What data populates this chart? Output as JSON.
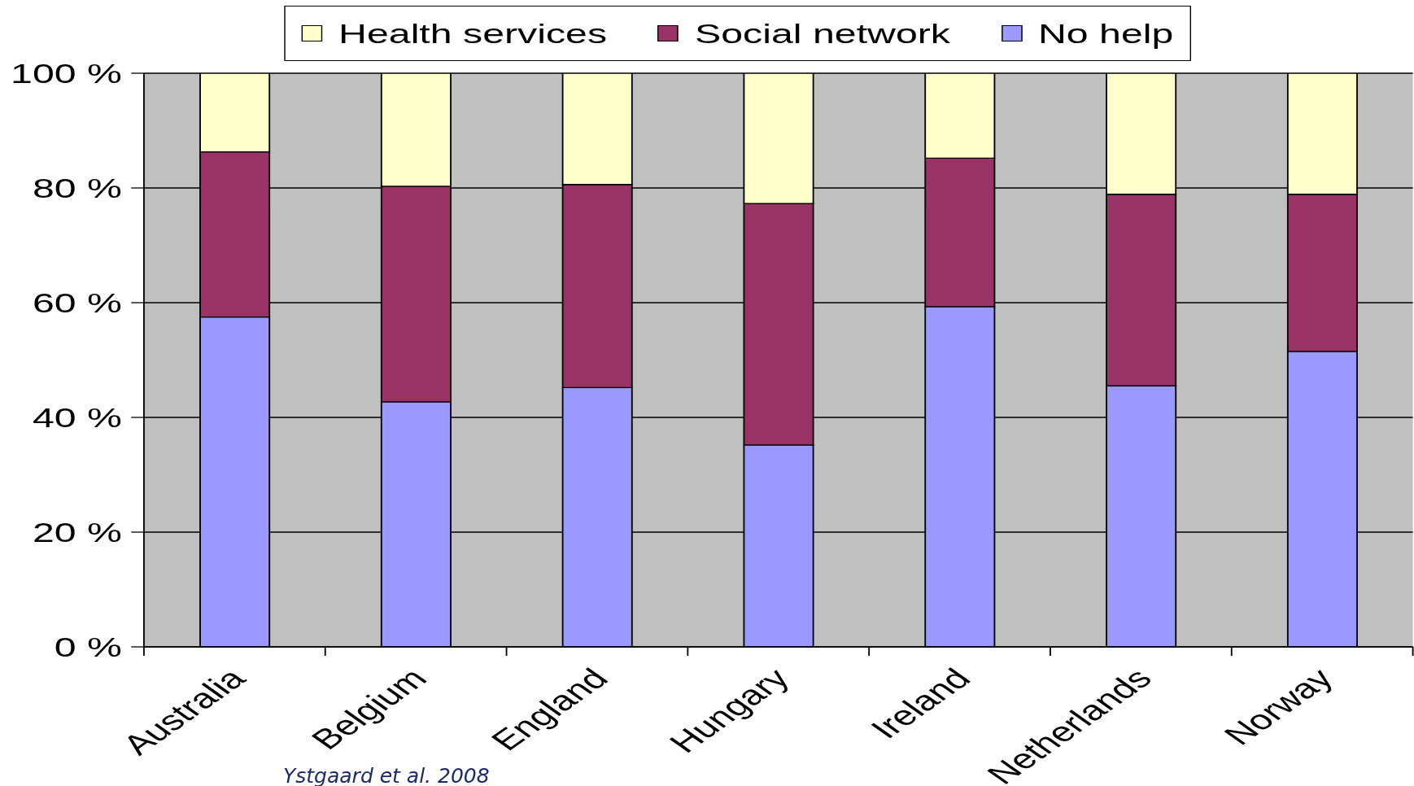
{
  "chart_data": {
    "type": "bar",
    "stacked": true,
    "categories": [
      "Australia",
      "Belgium",
      "England",
      "Hungary",
      "Ireland",
      "Netherlands",
      "Norway"
    ],
    "series": [
      {
        "name": "No help",
        "color": "#9999ff",
        "values": [
          57.5,
          42.7,
          45.2,
          35.2,
          59.3,
          45.5,
          51.5
        ]
      },
      {
        "name": "Social network",
        "color": "#993366",
        "values": [
          28.8,
          37.6,
          35.4,
          42.1,
          25.9,
          33.4,
          27.4
        ]
      },
      {
        "name": "Health services",
        "color": "#ffffcc",
        "values": [
          13.7,
          19.7,
          19.4,
          22.7,
          14.8,
          21.1,
          21.1
        ]
      }
    ],
    "ylim": [
      0,
      100
    ],
    "yticks": [
      {
        "value": 0,
        "label": "0 %"
      },
      {
        "value": 20,
        "label": "20 %"
      },
      {
        "value": 40,
        "label": "40 %"
      },
      {
        "value": 60,
        "label": "60 %"
      },
      {
        "value": 80,
        "label": "80 %"
      },
      {
        "value": 100,
        "label": "100 %"
      }
    ],
    "grid": "y",
    "legend": "top",
    "annotations": [
      "Ystgaard et al. 2008"
    ]
  }
}
